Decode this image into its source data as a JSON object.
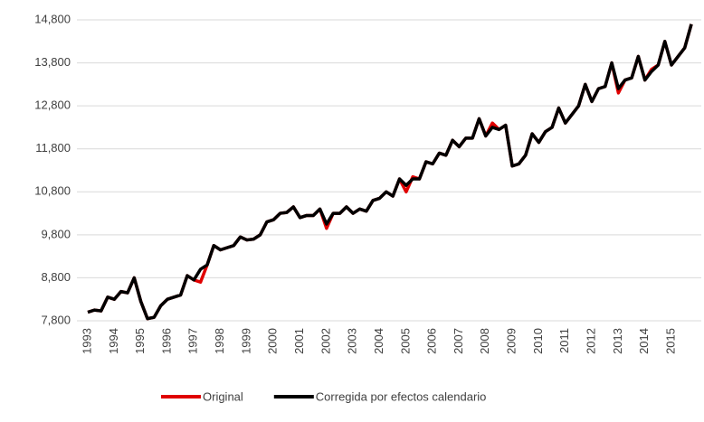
{
  "chart_data": {
    "type": "line",
    "categories": [
      "1993",
      null,
      null,
      null,
      "1994",
      null,
      null,
      null,
      "1995",
      null,
      null,
      null,
      "1996",
      null,
      null,
      null,
      "1997",
      null,
      null,
      null,
      "1998",
      null,
      null,
      null,
      "1999",
      null,
      null,
      null,
      "2000",
      null,
      null,
      null,
      "2001",
      null,
      null,
      null,
      "2002",
      null,
      null,
      null,
      "2003",
      null,
      null,
      null,
      "2004",
      null,
      null,
      null,
      "2005",
      null,
      null,
      null,
      "2006",
      null,
      null,
      null,
      "2007",
      null,
      null,
      null,
      "2008",
      null,
      null,
      null,
      "2009",
      null,
      null,
      null,
      "2010",
      null,
      null,
      null,
      "2011",
      null,
      null,
      null,
      "2012",
      null,
      null,
      null,
      "2013",
      null,
      null,
      null,
      "2014",
      null,
      null,
      null,
      "2015",
      null,
      null,
      null
    ],
    "series": [
      {
        "name": "Original",
        "color": "#e00000",
        "values": [
          8000,
          8050,
          8030,
          8350,
          8300,
          8480,
          8450,
          8800,
          8250,
          7850,
          7880,
          8150,
          8300,
          8350,
          8400,
          8850,
          8750,
          8700,
          9100,
          9550,
          9450,
          9500,
          9550,
          9750,
          9680,
          9700,
          9800,
          10100,
          10150,
          10300,
          10320,
          10450,
          10200,
          10250,
          10250,
          10400,
          9950,
          10300,
          10300,
          10450,
          10300,
          10400,
          10350,
          10600,
          10650,
          10800,
          10700,
          11100,
          10800,
          11150,
          11100,
          11500,
          11450,
          11700,
          11650,
          12000,
          11850,
          12050,
          12050,
          12500,
          12100,
          12400,
          12250,
          12350,
          11400,
          11450,
          11650,
          12150,
          11950,
          12200,
          12300,
          12750,
          12400,
          12600,
          12800,
          13300,
          12900,
          13200,
          13250,
          13800,
          13100,
          13400,
          13450,
          13950,
          13400,
          13650,
          13750,
          14300,
          13750,
          13950,
          14150,
          14700
        ]
      },
      {
        "name": "Corregida por efectos calendario",
        "color": "#000000",
        "values": [
          8000,
          8050,
          8030,
          8350,
          8300,
          8480,
          8450,
          8800,
          8250,
          7850,
          7880,
          8150,
          8300,
          8350,
          8400,
          8850,
          8750,
          9000,
          9100,
          9550,
          9450,
          9500,
          9550,
          9750,
          9680,
          9700,
          9800,
          10100,
          10150,
          10300,
          10320,
          10450,
          10200,
          10250,
          10250,
          10400,
          10050,
          10300,
          10300,
          10450,
          10300,
          10400,
          10350,
          10600,
          10650,
          10800,
          10700,
          11100,
          10950,
          11100,
          11100,
          11500,
          11450,
          11700,
          11650,
          12000,
          11850,
          12050,
          12050,
          12500,
          12100,
          12300,
          12250,
          12350,
          11400,
          11450,
          11650,
          12150,
          11950,
          12200,
          12300,
          12750,
          12400,
          12600,
          12800,
          13300,
          12900,
          13200,
          13250,
          13800,
          13200,
          13400,
          13450,
          13950,
          13400,
          13600,
          13750,
          14300,
          13750,
          13950,
          14150,
          14700
        ]
      }
    ],
    "ylim": [
      7800,
      14800
    ],
    "yticks": [
      {
        "value": 7800,
        "label": "7,800"
      },
      {
        "value": 8800,
        "label": "8,800"
      },
      {
        "value": 9800,
        "label": "9,800"
      },
      {
        "value": 10800,
        "label": "10,800"
      },
      {
        "value": 11800,
        "label": "11,800"
      },
      {
        "value": 12800,
        "label": "12,800"
      },
      {
        "value": 13800,
        "label": "13,800"
      },
      {
        "value": 14800,
        "label": "14,800"
      }
    ],
    "grid": true,
    "legend": "bottom"
  }
}
